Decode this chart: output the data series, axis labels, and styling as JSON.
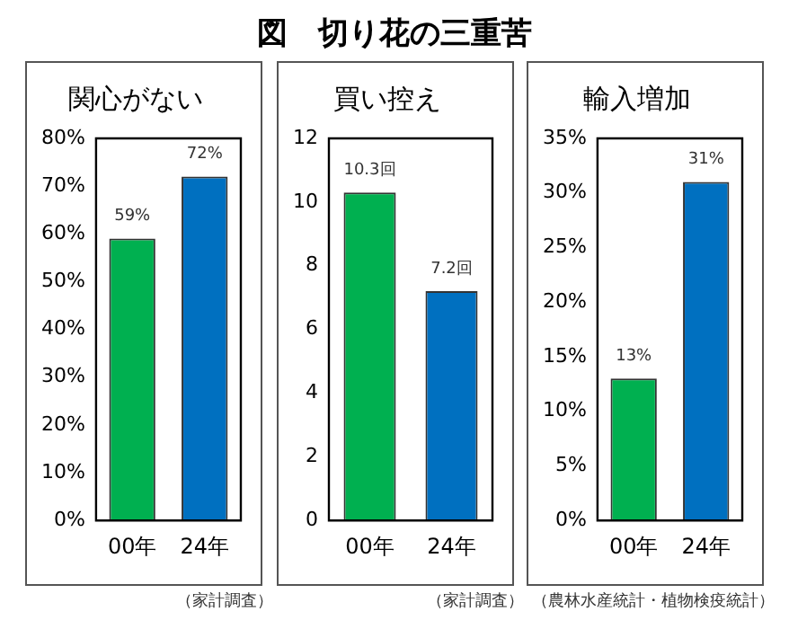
{
  "chart_data": [
    {
      "type": "bar",
      "title": "関心がない",
      "categories": [
        "00年",
        "24年"
      ],
      "values": [
        59,
        72
      ],
      "colors": [
        "#00b050",
        "#0070c0"
      ],
      "value_labels": [
        "59%",
        "72%"
      ],
      "ylim": [
        0,
        80
      ],
      "yticks": [
        {
          "value": 0,
          "label": "0%"
        },
        {
          "value": 10,
          "label": "10%"
        },
        {
          "value": 20,
          "label": "20%"
        },
        {
          "value": 30,
          "label": "30%"
        },
        {
          "value": 40,
          "label": "40%"
        },
        {
          "value": 50,
          "label": "50%"
        },
        {
          "value": 60,
          "label": "60%"
        },
        {
          "value": 70,
          "label": "70%"
        },
        {
          "value": 80,
          "label": "80%"
        }
      ],
      "grid": false,
      "legend": false,
      "annotations": [
        "図　切り花の三重苦",
        "（家計調査）"
      ]
    },
    {
      "type": "bar",
      "title": "買い控え",
      "categories": [
        "00年",
        "24年"
      ],
      "values": [
        10.3,
        7.2
      ],
      "colors": [
        "#00b050",
        "#0070c0"
      ],
      "value_labels": [
        "10.3回",
        "7.2回"
      ],
      "ylim": [
        0,
        12
      ],
      "yticks": [
        0,
        2,
        4,
        6,
        8,
        10,
        12
      ],
      "grid": false,
      "legend": false,
      "annotations": [
        "（家計調査）"
      ]
    },
    {
      "type": "bar",
      "title": "輸入増加",
      "categories": [
        "00年",
        "24年"
      ],
      "values": [
        13,
        31
      ],
      "colors": [
        "#00b050",
        "#0070c0"
      ],
      "value_labels": [
        "13%",
        "31%"
      ],
      "ylim": [
        0,
        35
      ],
      "yticks": [
        {
          "value": 0,
          "label": "0%"
        },
        {
          "value": 5,
          "label": "5%"
        },
        {
          "value": 10,
          "label": "10%"
        },
        {
          "value": 15,
          "label": "15%"
        },
        {
          "value": 20,
          "label": "20%"
        },
        {
          "value": 25,
          "label": "25%"
        },
        {
          "value": 30,
          "label": "30%"
        },
        {
          "value": 35,
          "label": "35%"
        }
      ],
      "grid": false,
      "legend": false,
      "annotations": [
        "（農林水産統計・植物検疫統計）"
      ]
    }
  ]
}
